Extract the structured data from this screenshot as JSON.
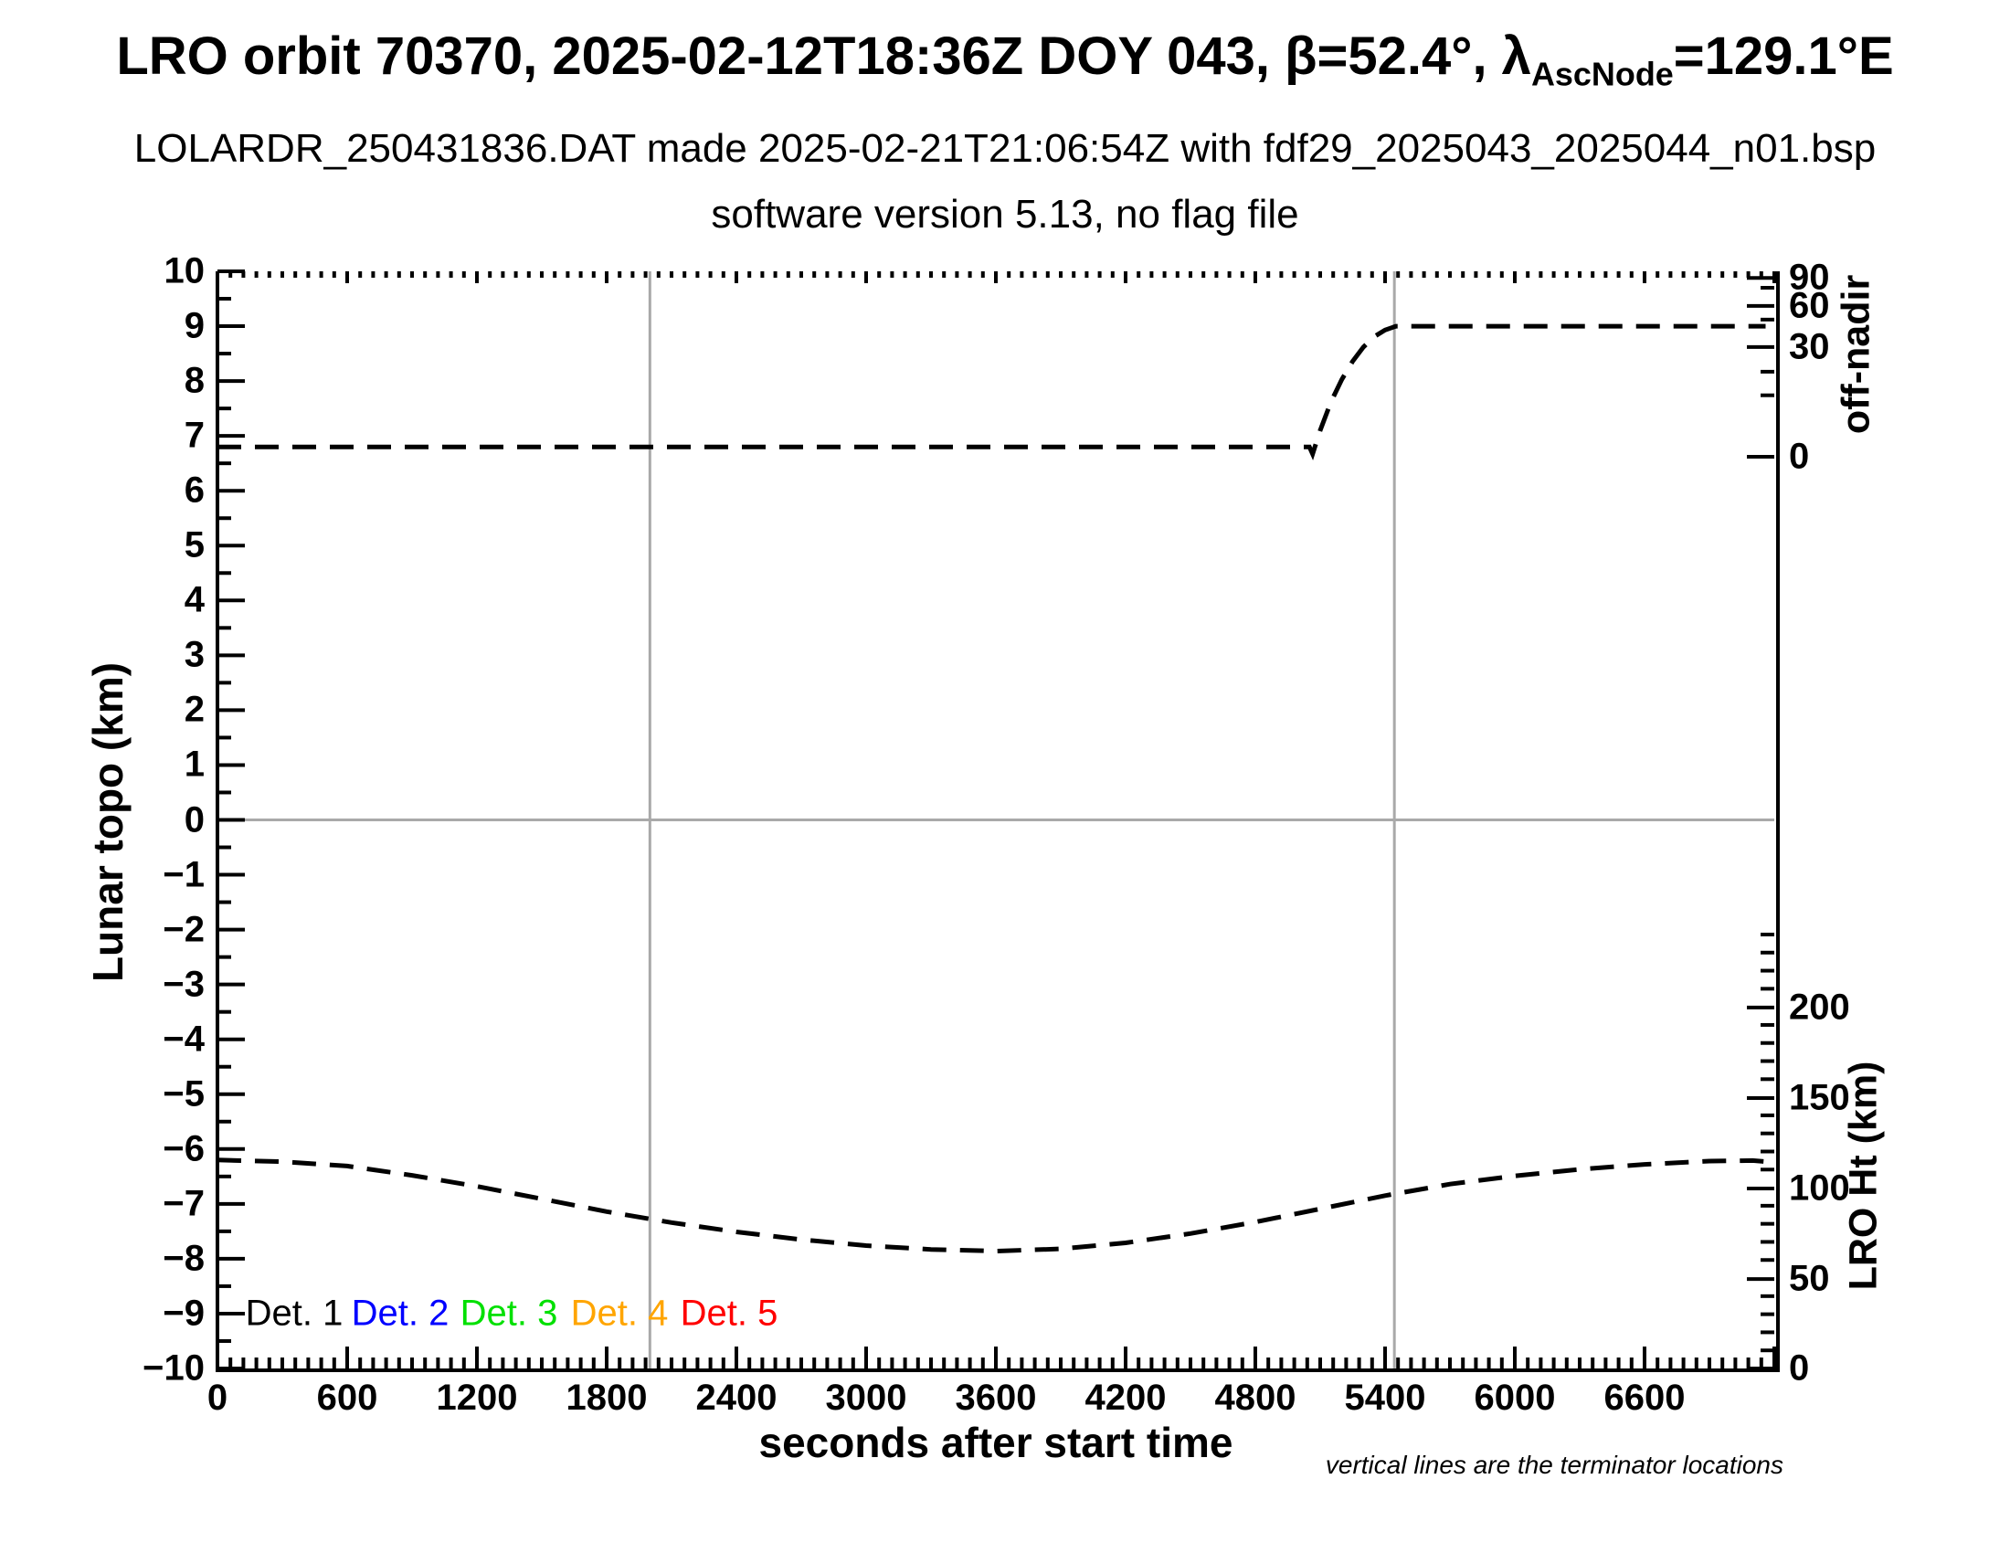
{
  "header": {
    "title_prefix": "LRO orbit 70370, 2025-02-12T18:36Z DOY 043, β=52.4°, λ",
    "title_sub": "AscNode",
    "title_suffix": "=129.1°E",
    "subtitle1": "LOLARDR_250431836.DAT made 2025-02-21T21:06:54Z with fdf29_2025043_2025044_n01.bsp",
    "subtitle2": "software version 5.13, no flag file"
  },
  "note": {
    "text": "vertical lines are the terminator locations"
  },
  "legend": {
    "y": -9.0,
    "items": [
      {
        "label": "Det. 1",
        "color": "#000000",
        "x": 355
      },
      {
        "label": "Det. 2",
        "color": "#0000ff",
        "x": 845
      },
      {
        "label": "Det. 3",
        "color": "#00e000",
        "x": 1348
      },
      {
        "label": "Det. 4",
        "color": "#ffa500",
        "x": 1859
      },
      {
        "label": "Det. 5",
        "color": "#ff0000",
        "x": 2366
      }
    ]
  },
  "chart_data": {
    "type": "line",
    "title": "LRO orbit 70370, 2025-02-12T18:36Z DOY 043, β=52.4°, λAscNode=129.1°E",
    "xlabel": "seconds after start time",
    "ylabel_left": "Lunar topo (km)",
    "ylabel_right_top": "off-nadir",
    "ylabel_right_bottom": "LRO Ht (km)",
    "xlim": [
      0,
      7200
    ],
    "ylim_left": [
      -10,
      10
    ],
    "grid": false,
    "x_major_step": 600,
    "x_minor_step": 60,
    "x_tick_labels": [
      "0",
      "600",
      "1200",
      "1800",
      "2400",
      "3000",
      "3600",
      "4200",
      "4800",
      "5400",
      "6000",
      "6600"
    ],
    "y_left_major_step": 1,
    "y_left_minor_step": 0.5,
    "right_axis_top": {
      "label": "off-nadir",
      "major_ticks": [
        {
          "label": "90",
          "u": 9.88
        },
        {
          "label": "60",
          "u": 9.37
        },
        {
          "label": "30",
          "u": 8.62
        },
        {
          "label": "0",
          "u": 6.62
        }
      ],
      "minor_ticks_u": [
        9.7,
        9.12,
        8.17,
        7.74
      ]
    },
    "right_axis_bottom": {
      "label": "LRO Ht (km)",
      "major_ticks": [
        {
          "label": "200",
          "u": -3.42,
          "km": 200
        },
        {
          "label": "150",
          "u": -5.07,
          "km": 150
        },
        {
          "label": "100",
          "u": -6.72,
          "km": 100
        },
        {
          "label": "50",
          "u": -8.37,
          "km": 50
        },
        {
          "label": "0",
          "u": -10.0,
          "km": 0
        }
      ],
      "u_per_50km": 1.648,
      "minor_step_km": 10,
      "minor_max_km": 250
    },
    "terminator_lines_x": [
      2000,
      5443
    ],
    "zero_line_y": 0,
    "line_style": {
      "color": "#000000",
      "dash": [
        26,
        15
      ],
      "width": 5
    },
    "gray_line_color": "#a9a9a9",
    "series": [
      {
        "name": "off-nadir angle (plotted in left-axis units)",
        "style": "dashed",
        "color": "#000000",
        "points": [
          [
            0,
            6.8
          ],
          [
            600,
            6.8
          ],
          [
            1200,
            6.8
          ],
          [
            1800,
            6.8
          ],
          [
            2400,
            6.8
          ],
          [
            3000,
            6.8
          ],
          [
            3600,
            6.8
          ],
          [
            4200,
            6.8
          ],
          [
            4800,
            6.8
          ],
          [
            5050,
            6.8
          ],
          [
            5065,
            6.67
          ],
          [
            5100,
            7.1
          ],
          [
            5150,
            7.62
          ],
          [
            5200,
            8.03
          ],
          [
            5250,
            8.36
          ],
          [
            5300,
            8.62
          ],
          [
            5350,
            8.81
          ],
          [
            5400,
            8.93
          ],
          [
            5450,
            9.0
          ],
          [
            5700,
            9.0
          ],
          [
            6000,
            9.0
          ],
          [
            6600,
            9.0
          ],
          [
            7160,
            9.0
          ]
        ]
      },
      {
        "name": "LRO height (plotted in left-axis units)",
        "style": "dashed",
        "color": "#000000",
        "points": [
          [
            0,
            -6.2
          ],
          [
            300,
            -6.23
          ],
          [
            600,
            -6.31
          ],
          [
            900,
            -6.48
          ],
          [
            1200,
            -6.68
          ],
          [
            1500,
            -6.91
          ],
          [
            1800,
            -7.14
          ],
          [
            2100,
            -7.34
          ],
          [
            2400,
            -7.51
          ],
          [
            2700,
            -7.65
          ],
          [
            3000,
            -7.76
          ],
          [
            3300,
            -7.83
          ],
          [
            3600,
            -7.86
          ],
          [
            3900,
            -7.82
          ],
          [
            4200,
            -7.71
          ],
          [
            4500,
            -7.54
          ],
          [
            4800,
            -7.33
          ],
          [
            5100,
            -7.09
          ],
          [
            5400,
            -6.85
          ],
          [
            5700,
            -6.64
          ],
          [
            6000,
            -6.49
          ],
          [
            6300,
            -6.37
          ],
          [
            6600,
            -6.28
          ],
          [
            6900,
            -6.22
          ],
          [
            7100,
            -6.21
          ],
          [
            7160,
            -6.23
          ]
        ],
        "points_km": [
          [
            0,
            115
          ],
          [
            600,
            112
          ],
          [
            1200,
            101
          ],
          [
            1800,
            87
          ],
          [
            2400,
            76
          ],
          [
            3000,
            68
          ],
          [
            3600,
            65
          ],
          [
            4200,
            70
          ],
          [
            4800,
            81
          ],
          [
            5400,
            96
          ],
          [
            6000,
            107
          ],
          [
            6600,
            113
          ],
          [
            7160,
            114
          ]
        ]
      }
    ]
  }
}
